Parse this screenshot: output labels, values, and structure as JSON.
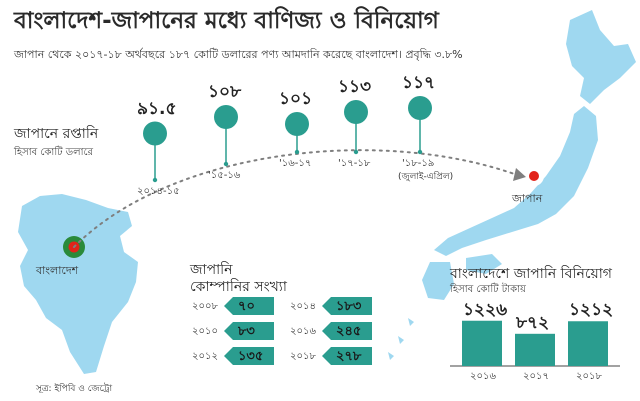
{
  "title": "বাংলাদেশ-জাপানের মধ্যে বাণিজ্য ও বিনিয়োগ",
  "subtitle": "জাপান থেকে ২০১৭-১৮ অর্থবছরে ১৮৭ কোটি ডলারের পণ্য আমদানি করেছে বাংলাদেশ। প্রবৃদ্ধি ৩.৮%",
  "labels": {
    "bangladesh": "বাংলাদেশ",
    "japan": "জাপান"
  },
  "source": "সূত্র: ইপিবি ও জেট্রো",
  "colors": {
    "teal": "#2a9d8f",
    "map": "#9fd8f0",
    "red": "#e2231a",
    "green": "#2a8a3a",
    "dots": "#7f7f7f"
  },
  "chart_data": [
    {
      "type": "scatter",
      "title": "জাপানে রপ্তানি",
      "subtitle": "হিসাব কোটি ডলারে",
      "categories": [
        "২০১৪-১৫",
        "'১৫-১৬",
        "'১৬-১৭",
        "'১৭-১৮",
        "'১৮-১৯"
      ],
      "category_notes": [
        "",
        "",
        "",
        "",
        "(জুলাই-এপ্রিল)"
      ],
      "values": [
        91.5,
        108,
        101,
        113,
        117
      ],
      "value_labels": [
        "৯১.৫",
        "১০৮",
        "১০১",
        "১১৩",
        "১১৭"
      ]
    },
    {
      "type": "table",
      "title": "জাপানি",
      "subtitle": "কোম্পানির সংখ্যা",
      "rows": [
        {
          "year": "২০০৮",
          "value": 70,
          "label": "৭০"
        },
        {
          "year": "২০১০",
          "value": 83,
          "label": "৮৩"
        },
        {
          "year": "২০১২",
          "value": 135,
          "label": "১৩৫"
        },
        {
          "year": "২০১৪",
          "value": 183,
          "label": "১৮৩"
        },
        {
          "year": "২০১৬",
          "value": 245,
          "label": "২৪৫"
        },
        {
          "year": "২০১৮",
          "value": 278,
          "label": "২৭৮"
        }
      ]
    },
    {
      "type": "bar",
      "title": "বাংলাদেশে জাপানি বিনিয়োগ",
      "subtitle": "হিসাব কোটি টাকায়",
      "categories": [
        "২০১৬",
        "২০১৭",
        "২০১৮"
      ],
      "values": [
        1226,
        872,
        1212
      ],
      "value_labels": [
        "১২২৬",
        "৮৭২",
        "১২১২"
      ],
      "ylim": [
        0,
        1300
      ]
    }
  ]
}
